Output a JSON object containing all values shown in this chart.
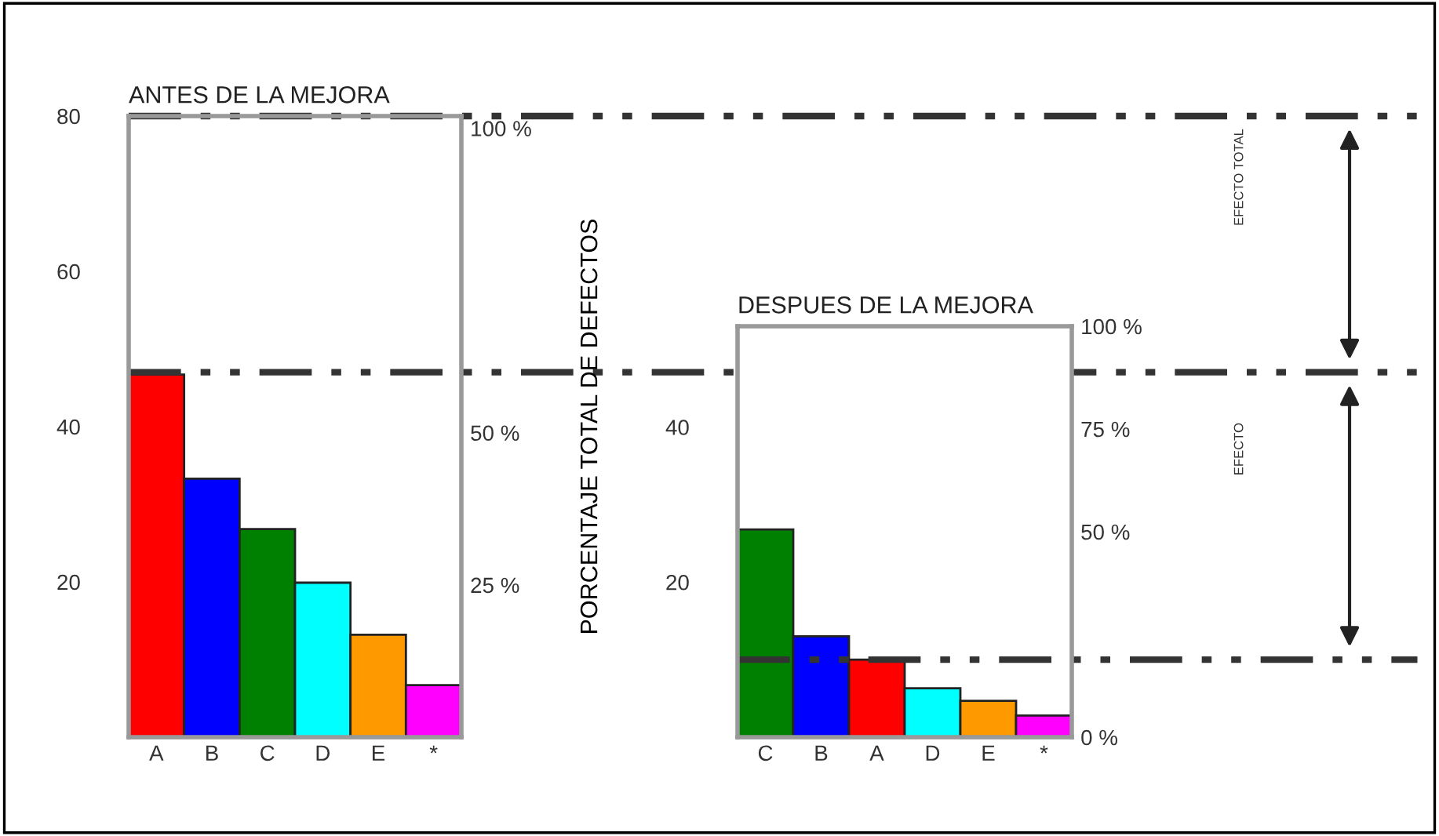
{
  "chart_data": [
    {
      "type": "bar",
      "title": "ANTES DE LA MEJORA",
      "y2label": "PORCENTAJE TOTAL DE DEFECTOS",
      "categories": [
        "A",
        "B",
        "C",
        "D",
        "E",
        "*"
      ],
      "values": [
        46.7,
        33.3,
        26.8,
        19.9,
        13.2,
        6.7
      ],
      "colors": [
        "#ff0000",
        "#0000ff",
        "#008000",
        "#00ffff",
        "#ff9900",
        "#ff00ff"
      ],
      "ylim": [
        0,
        80
      ],
      "yticks": [
        20,
        40,
        60,
        80
      ],
      "y2lim": [
        0,
        102
      ],
      "y2ticks": [
        {
          "value": 25,
          "label": "25 %"
        },
        {
          "value": 50,
          "label": "50 %"
        },
        {
          "value": 100,
          "label": "100 %"
        }
      ],
      "grid": false,
      "legend": false,
      "ref_lines": [
        {
          "axis": "y",
          "value": 80,
          "color": "#333333",
          "line_style": "dashdot"
        },
        {
          "axis": "y",
          "value": 47,
          "color": "#333333",
          "line_style": "dashdot"
        }
      ],
      "annotations": [
        "EFECTO TOTAL",
        "EFECTO"
      ]
    },
    {
      "type": "bar",
      "title": "DESPUES DE LA MEJORA",
      "categories": [
        "C",
        "B",
        "A",
        "D",
        "E",
        "*"
      ],
      "values": [
        26.8,
        13,
        10,
        6.3,
        4.7,
        2.8
      ],
      "colors": [
        "#008000",
        "#0000ff",
        "#ff0000",
        "#00ffff",
        "#ff9900",
        "#ff00ff"
      ],
      "ylim": [
        0,
        53
      ],
      "yticks": [
        20,
        40
      ],
      "y2lim": [
        0,
        100
      ],
      "y2ticks": [
        {
          "value": 0,
          "label": "0 %"
        },
        {
          "value": 50,
          "label": "50 %"
        },
        {
          "value": 75,
          "label": "75 %"
        },
        {
          "value": 100,
          "label": "100 %"
        }
      ],
      "grid": false,
      "legend": false,
      "ref_lines": [
        {
          "axis": "y",
          "value": 10,
          "color": "#333333",
          "line_style": "dashdot"
        }
      ]
    }
  ]
}
